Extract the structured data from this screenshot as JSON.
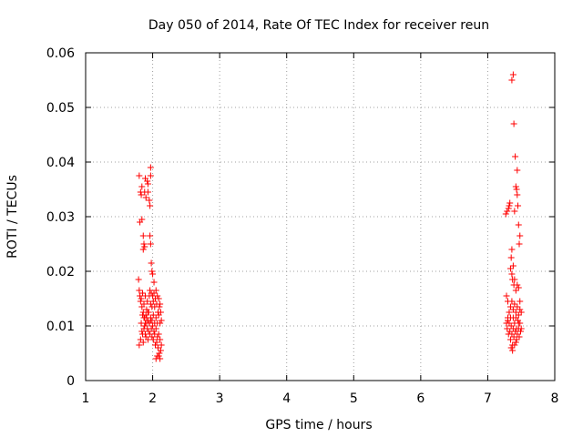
{
  "chart_data": {
    "type": "scatter",
    "title": "Day 050 of 2014, Rate Of TEC Index for receiver reun",
    "xlabel": "GPS time / hours",
    "ylabel": "ROTI / TECUs",
    "xlim": [
      1,
      8
    ],
    "ylim": [
      0,
      0.06
    ],
    "xticks": [
      "1",
      "2",
      "3",
      "4",
      "5",
      "6",
      "7",
      "8"
    ],
    "yticks": [
      "0",
      "0.01",
      "0.02",
      "0.03",
      "0.04",
      "0.05",
      "0.06"
    ],
    "grid": true,
    "marker": "+",
    "color": "#ff0000",
    "series": [
      {
        "name": "ROTI",
        "points": [
          [
            1.8,
            0.0375
          ],
          [
            1.82,
            0.0345
          ],
          [
            1.83,
            0.034
          ],
          [
            1.84,
            0.0355
          ],
          [
            1.81,
            0.029
          ],
          [
            1.84,
            0.0295
          ],
          [
            1.86,
            0.0265
          ],
          [
            1.87,
            0.025
          ],
          [
            1.86,
            0.024
          ],
          [
            1.88,
            0.0245
          ],
          [
            1.88,
            0.0345
          ],
          [
            1.89,
            0.037
          ],
          [
            1.9,
            0.0335
          ],
          [
            1.92,
            0.0365
          ],
          [
            1.93,
            0.036
          ],
          [
            1.93,
            0.0345
          ],
          [
            1.95,
            0.033
          ],
          [
            1.96,
            0.032
          ],
          [
            1.97,
            0.039
          ],
          [
            1.97,
            0.0375
          ],
          [
            1.96,
            0.0265
          ],
          [
            1.97,
            0.025
          ],
          [
            1.98,
            0.0215
          ],
          [
            1.99,
            0.02
          ],
          [
            2.0,
            0.0195
          ],
          [
            2.02,
            0.018
          ],
          [
            1.79,
            0.0185
          ],
          [
            1.8,
            0.0165
          ],
          [
            1.81,
            0.0155
          ],
          [
            1.82,
            0.0145
          ],
          [
            1.83,
            0.015
          ],
          [
            1.84,
            0.0135
          ],
          [
            1.85,
            0.016
          ],
          [
            1.86,
            0.0125
          ],
          [
            1.87,
            0.014
          ],
          [
            1.88,
            0.0115
          ],
          [
            1.89,
            0.0155
          ],
          [
            1.9,
            0.012
          ],
          [
            1.91,
            0.013
          ],
          [
            1.92,
            0.0145
          ],
          [
            1.93,
            0.011
          ],
          [
            1.94,
            0.0125
          ],
          [
            1.95,
            0.0155
          ],
          [
            1.96,
            0.0165
          ],
          [
            1.97,
            0.014
          ],
          [
            1.98,
            0.016
          ],
          [
            1.99,
            0.0135
          ],
          [
            2.0,
            0.0155
          ],
          [
            2.01,
            0.0145
          ],
          [
            2.02,
            0.016
          ],
          [
            2.03,
            0.0135
          ],
          [
            2.04,
            0.015
          ],
          [
            2.05,
            0.0165
          ],
          [
            2.06,
            0.014
          ],
          [
            2.07,
            0.0155
          ],
          [
            2.08,
            0.0125
          ],
          [
            2.09,
            0.015
          ],
          [
            2.1,
            0.0135
          ],
          [
            2.11,
            0.014
          ],
          [
            2.12,
            0.0125
          ],
          [
            1.8,
            0.0065
          ],
          [
            1.82,
            0.0075
          ],
          [
            1.84,
            0.009
          ],
          [
            1.85,
            0.0085
          ],
          [
            1.86,
            0.007
          ],
          [
            1.87,
            0.0095
          ],
          [
            1.88,
            0.01
          ],
          [
            1.89,
            0.0085
          ],
          [
            1.9,
            0.008
          ],
          [
            1.91,
            0.0105
          ],
          [
            1.92,
            0.0095
          ],
          [
            1.93,
            0.0075
          ],
          [
            1.94,
            0.009
          ],
          [
            1.95,
            0.0105
          ],
          [
            1.96,
            0.0085
          ],
          [
            1.97,
            0.011
          ],
          [
            1.98,
            0.0095
          ],
          [
            1.99,
            0.008
          ],
          [
            2.0,
            0.01
          ],
          [
            2.01,
            0.0075
          ],
          [
            2.02,
            0.009
          ],
          [
            2.03,
            0.0085
          ],
          [
            2.04,
            0.0065
          ],
          [
            2.05,
            0.0095
          ],
          [
            2.06,
            0.007
          ],
          [
            2.07,
            0.008
          ],
          [
            2.08,
            0.006
          ],
          [
            2.09,
            0.0085
          ],
          [
            2.1,
            0.005
          ],
          [
            2.11,
            0.0075
          ],
          [
            2.12,
            0.0055
          ],
          [
            2.13,
            0.0065
          ],
          [
            2.05,
            0.004
          ],
          [
            2.07,
            0.0045
          ],
          [
            2.09,
            0.0045
          ],
          [
            2.11,
            0.004
          ],
          [
            1.83,
            0.0105
          ],
          [
            1.85,
            0.012
          ],
          [
            1.87,
            0.0115
          ],
          [
            1.89,
            0.0105
          ],
          [
            1.91,
            0.0115
          ],
          [
            1.93,
            0.0125
          ],
          [
            1.95,
            0.0105
          ],
          [
            1.97,
            0.0115
          ],
          [
            1.99,
            0.011
          ],
          [
            2.01,
            0.012
          ],
          [
            2.03,
            0.0105
          ],
          [
            2.05,
            0.0115
          ],
          [
            2.07,
            0.0105
          ],
          [
            2.09,
            0.012
          ],
          [
            2.11,
            0.0105
          ],
          [
            2.13,
            0.011
          ],
          [
            7.38,
            0.056
          ],
          [
            7.36,
            0.055
          ],
          [
            7.39,
            0.047
          ],
          [
            7.41,
            0.041
          ],
          [
            7.44,
            0.0385
          ],
          [
            7.42,
            0.0355
          ],
          [
            7.43,
            0.035
          ],
          [
            7.44,
            0.034
          ],
          [
            7.45,
            0.032
          ],
          [
            7.4,
            0.031
          ],
          [
            7.27,
            0.0305
          ],
          [
            7.29,
            0.031
          ],
          [
            7.31,
            0.0315
          ],
          [
            7.32,
            0.032
          ],
          [
            7.33,
            0.0325
          ],
          [
            7.46,
            0.0285
          ],
          [
            7.48,
            0.0265
          ],
          [
            7.47,
            0.025
          ],
          [
            7.36,
            0.024
          ],
          [
            7.35,
            0.0225
          ],
          [
            7.38,
            0.021
          ],
          [
            7.34,
            0.0205
          ],
          [
            7.36,
            0.0195
          ],
          [
            7.37,
            0.0185
          ],
          [
            7.39,
            0.0175
          ],
          [
            7.4,
            0.0185
          ],
          [
            7.42,
            0.0165
          ],
          [
            7.44,
            0.0175
          ],
          [
            7.46,
            0.017
          ],
          [
            7.48,
            0.0145
          ],
          [
            7.28,
            0.0155
          ],
          [
            7.3,
            0.0145
          ],
          [
            7.32,
            0.0125
          ],
          [
            7.34,
            0.0135
          ],
          [
            7.36,
            0.0145
          ],
          [
            7.38,
            0.013
          ],
          [
            7.4,
            0.014
          ],
          [
            7.42,
            0.0125
          ],
          [
            7.44,
            0.0135
          ],
          [
            7.46,
            0.012
          ],
          [
            7.48,
            0.013
          ],
          [
            7.5,
            0.0125
          ],
          [
            7.28,
            0.0105
          ],
          [
            7.29,
            0.0095
          ],
          [
            7.3,
            0.011
          ],
          [
            7.31,
            0.0085
          ],
          [
            7.32,
            0.0105
          ],
          [
            7.33,
            0.009
          ],
          [
            7.34,
            0.0075
          ],
          [
            7.35,
            0.01
          ],
          [
            7.36,
            0.0085
          ],
          [
            7.37,
            0.0065
          ],
          [
            7.38,
            0.0095
          ],
          [
            7.39,
            0.008
          ],
          [
            7.4,
            0.0105
          ],
          [
            7.41,
            0.009
          ],
          [
            7.42,
            0.007
          ],
          [
            7.43,
            0.0095
          ],
          [
            7.44,
            0.0085
          ],
          [
            7.45,
            0.011
          ],
          [
            7.46,
            0.0095
          ],
          [
            7.47,
            0.008
          ],
          [
            7.48,
            0.0105
          ],
          [
            7.49,
            0.009
          ],
          [
            7.35,
            0.006
          ],
          [
            7.37,
            0.0055
          ],
          [
            7.4,
            0.0065
          ],
          [
            7.43,
            0.0075
          ],
          [
            7.3,
            0.0115
          ],
          [
            7.34,
            0.0115
          ],
          [
            7.38,
            0.0115
          ],
          [
            7.42,
            0.0115
          ],
          [
            7.46,
            0.0105
          ],
          [
            7.5,
            0.0095
          ]
        ]
      }
    ]
  }
}
